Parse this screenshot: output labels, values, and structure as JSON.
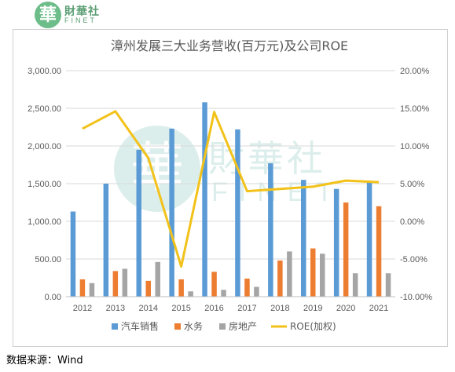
{
  "logo": {
    "badge_glyph": "華",
    "name_cn": "財華社",
    "name_en": "FINET"
  },
  "watermark": {
    "badge_glyph": "華",
    "name_cn": "財華社",
    "name_en": "FINET"
  },
  "source_note": "数据来源：Wind",
  "chart_data": {
    "type": "bar",
    "title": "漳州发展三大业务营收(百万元)及公司ROE",
    "categories": [
      "2012",
      "2013",
      "2014",
      "2015",
      "2016",
      "2017",
      "2018",
      "2019",
      "2020",
      "2021"
    ],
    "series": [
      {
        "name": "汽车销售",
        "type": "bar",
        "axis": "left",
        "color": "#5b9bd5",
        "values": [
          1130,
          1500,
          1950,
          2230,
          2580,
          2220,
          1770,
          1550,
          1430,
          1520
        ]
      },
      {
        "name": "水务",
        "type": "bar",
        "axis": "left",
        "color": "#ed7d31",
        "values": [
          230,
          340,
          210,
          230,
          330,
          240,
          480,
          640,
          1250,
          1200
        ]
      },
      {
        "name": "房地产",
        "type": "bar",
        "axis": "left",
        "color": "#a5a5a5",
        "values": [
          180,
          370,
          460,
          70,
          90,
          130,
          600,
          570,
          310,
          310
        ]
      },
      {
        "name": "ROE(加权)",
        "type": "line",
        "axis": "right",
        "color": "#f2c21a",
        "values": [
          12.3,
          14.6,
          8.4,
          -6.0,
          14.5,
          4.0,
          4.3,
          4.6,
          5.4,
          5.2
        ]
      }
    ],
    "y_left": {
      "min": 0,
      "max": 3000,
      "ticks": [
        "0.00",
        "500.00",
        "1,000.00",
        "1,500.00",
        "2,000.00",
        "2,500.00",
        "3,000.00"
      ]
    },
    "y_right": {
      "min": -10,
      "max": 20,
      "ticks": [
        "-10.00%",
        "-5.00%",
        "0.00%",
        "5.00%",
        "10.00%",
        "15.00%",
        "20.00%"
      ]
    },
    "grid": true,
    "legend_position": "bottom"
  }
}
